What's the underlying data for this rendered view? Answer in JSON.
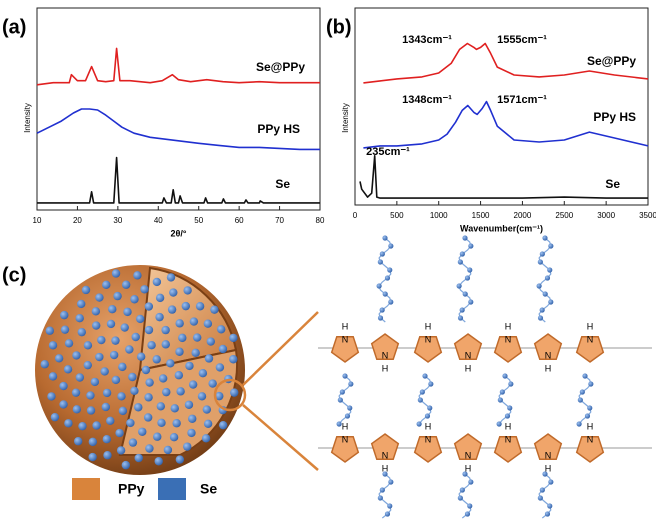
{
  "chart_data": [
    {
      "type": "line",
      "panel_label": "(a)",
      "xlabel": "2θ/°",
      "ylabel": "Intensity",
      "xlim": [
        10,
        80
      ],
      "xticks": [
        10,
        20,
        30,
        40,
        50,
        60,
        70,
        80
      ],
      "ylim": [
        0,
        100
      ],
      "series": [
        {
          "name": "Se@PPy",
          "color": "#e02020",
          "x": [
            10,
            14,
            17,
            18,
            18.5,
            20,
            22,
            23.5,
            25,
            27,
            29,
            29.7,
            30.5,
            33,
            38,
            41,
            43.5,
            45,
            48,
            52,
            56,
            60,
            65,
            70,
            75,
            80
          ],
          "values": [
            62,
            63,
            63,
            63,
            67,
            64,
            64,
            71,
            64,
            63.5,
            64,
            80,
            64,
            64,
            63,
            64,
            67,
            64.5,
            63.5,
            64.5,
            63.5,
            63,
            63.5,
            63,
            63,
            63
          ]
        },
        {
          "name": "PPy HS",
          "color": "#2030d0",
          "x": [
            10,
            13,
            16,
            19,
            21,
            23,
            25,
            27,
            29,
            31,
            34,
            38,
            42,
            46,
            50,
            55,
            60,
            65,
            70,
            75,
            80
          ],
          "values": [
            38,
            41,
            44,
            48,
            50,
            50,
            49.5,
            47,
            44,
            41,
            38,
            36,
            35,
            34,
            33,
            32,
            31,
            31,
            30.5,
            30,
            30
          ]
        },
        {
          "name": "Se",
          "color": "#111111",
          "x": [
            10,
            20,
            23,
            23.5,
            24,
            29,
            29.7,
            30.3,
            41,
            41.4,
            42,
            43.2,
            43.7,
            44.2,
            45,
            45.4,
            46,
            51.3,
            51.7,
            52.2,
            55.7,
            56.1,
            56.6,
            61.3,
            61.7,
            62.2,
            65,
            65.2,
            66,
            80
          ],
          "values": [
            3.5,
            3.5,
            3.5,
            9,
            3.5,
            3.5,
            26,
            3.5,
            3.5,
            6,
            3.5,
            3.5,
            10,
            3.5,
            3.5,
            7,
            3.5,
            3.5,
            6,
            3.5,
            3.5,
            5.5,
            3.5,
            3.5,
            5,
            3.5,
            3.5,
            4.5,
            3.5,
            3.5
          ]
        }
      ]
    },
    {
      "type": "line",
      "panel_label": "(b)",
      "xlabel": "Wavenumber(cm⁻¹)",
      "ylabel": "Intensity",
      "xlim": [
        0,
        3500
      ],
      "xticks": [
        0,
        500,
        1000,
        1500,
        2000,
        2500,
        3000,
        3500
      ],
      "ylim": [
        0,
        100
      ],
      "series": [
        {
          "name": "Se@PPy",
          "color": "#e02020",
          "x": [
            100,
            300,
            500,
            800,
            1000,
            1150,
            1250,
            1343,
            1420,
            1450,
            1500,
            1555,
            1620,
            1700,
            1900,
            2200,
            2500,
            2800,
            3100,
            3500
          ],
          "values": [
            62,
            63,
            64,
            65,
            67,
            72,
            79,
            82,
            80,
            79,
            80,
            82,
            77,
            70,
            66,
            65,
            66,
            68,
            66,
            64
          ]
        },
        {
          "name": "PPy HS",
          "color": "#2030d0",
          "x": [
            100,
            300,
            500,
            800,
            1000,
            1100,
            1200,
            1280,
            1348,
            1420,
            1460,
            1520,
            1571,
            1620,
            1700,
            1900,
            2200,
            2500,
            2800,
            3100,
            3500
          ],
          "values": [
            29,
            30,
            30,
            31,
            33,
            36,
            42,
            48,
            50.5,
            47,
            46,
            49,
            52.5,
            48,
            40,
            33,
            32,
            33,
            37,
            34,
            30
          ]
        },
        {
          "name": "Se",
          "color": "#111111",
          "x": [
            60,
            80,
            150,
            200,
            235,
            260,
            300,
            500,
            1000,
            1500,
            2000,
            2500,
            3000,
            3500
          ],
          "values": [
            12,
            8,
            4,
            6,
            25,
            4,
            3.5,
            3.5,
            3.5,
            3.5,
            3.5,
            4,
            3.5,
            3.5
          ]
        }
      ],
      "annotations": [
        "1343cm⁻¹",
        "1555cm⁻¹",
        "1348cm⁻¹",
        "1571cm⁻¹",
        "235cm⁻¹"
      ]
    }
  ],
  "diagram": {
    "panel_label": "(c)",
    "legend": [
      {
        "name": "PPy",
        "color": "#d9843b"
      },
      {
        "name": "Se",
        "color": "#3a6fb5"
      }
    ],
    "atom_h": "H",
    "atom_n": "N"
  }
}
